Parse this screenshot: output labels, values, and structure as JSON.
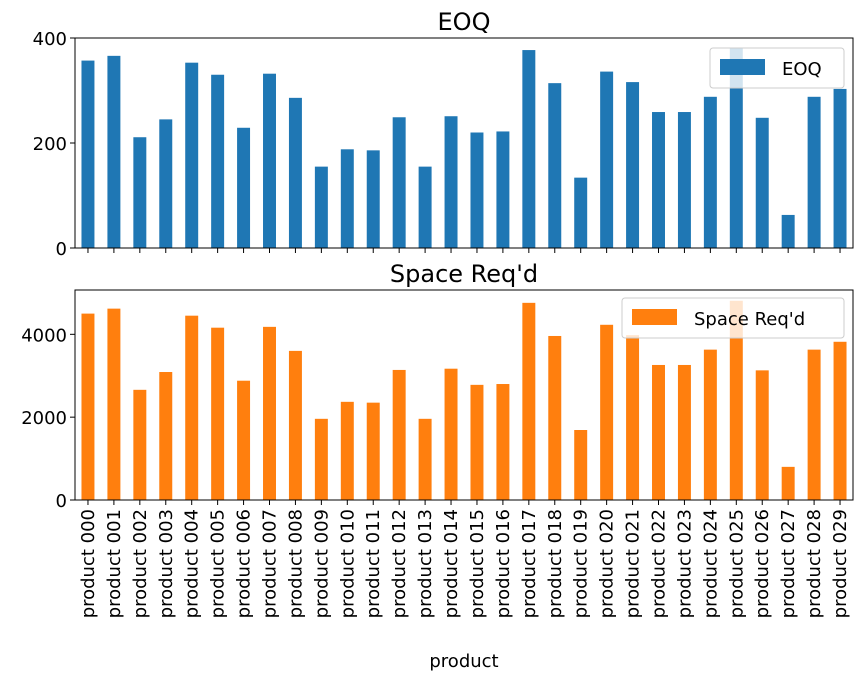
{
  "chart_data": [
    {
      "type": "bar",
      "title": "EOQ",
      "xlabel": "",
      "ylabel": "",
      "ylim": [
        0,
        400
      ],
      "yticks": [
        0,
        200,
        400
      ],
      "grid": false,
      "legend_position": "top-right",
      "categories": [
        "product 000",
        "product 001",
        "product 002",
        "product 003",
        "product 004",
        "product 005",
        "product 006",
        "product 007",
        "product 008",
        "product 009",
        "product 010",
        "product 011",
        "product 012",
        "product 013",
        "product 014",
        "product 015",
        "product 016",
        "product 017",
        "product 018",
        "product 019",
        "product 020",
        "product 021",
        "product 022",
        "product 023",
        "product 024",
        "product 025",
        "product 026",
        "product 027",
        "product 028",
        "product 029"
      ],
      "series": [
        {
          "name": "EOQ",
          "color": "#1f77b4",
          "values": [
            357,
            366,
            211,
            245,
            353,
            330,
            229,
            332,
            286,
            155,
            188,
            186,
            249,
            155,
            251,
            220,
            222,
            377,
            314,
            134,
            336,
            316,
            259,
            259,
            288,
            381,
            248,
            63,
            288,
            303
          ]
        }
      ]
    },
    {
      "type": "bar",
      "title": "Space Req'd",
      "xlabel": "product",
      "ylabel": "",
      "ylim": [
        0,
        5070
      ],
      "yticks": [
        0,
        2000,
        4000
      ],
      "grid": false,
      "legend_position": "top-right",
      "categories": [
        "product 000",
        "product 001",
        "product 002",
        "product 003",
        "product 004",
        "product 005",
        "product 006",
        "product 007",
        "product 008",
        "product 009",
        "product 010",
        "product 011",
        "product 012",
        "product 013",
        "product 014",
        "product 015",
        "product 016",
        "product 017",
        "product 018",
        "product 019",
        "product 020",
        "product 021",
        "product 022",
        "product 023",
        "product 024",
        "product 025",
        "product 026",
        "product 027",
        "product 028",
        "product 029"
      ],
      "series": [
        {
          "name": "Space Req'd",
          "color": "#ff7f0e",
          "values": [
            4500,
            4620,
            2660,
            3090,
            4450,
            4160,
            2880,
            4180,
            3600,
            1960,
            2370,
            2350,
            3140,
            1960,
            3170,
            2780,
            2800,
            4760,
            3960,
            1690,
            4230,
            3980,
            3260,
            3260,
            3630,
            4810,
            3130,
            800,
            3630,
            3820
          ]
        }
      ]
    }
  ]
}
